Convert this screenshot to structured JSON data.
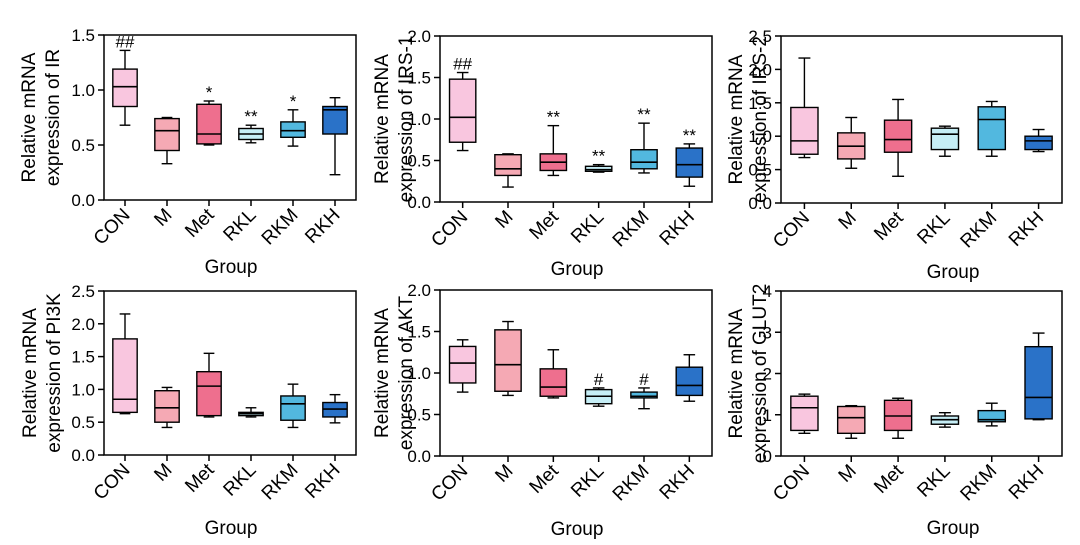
{
  "chart_data": [
    {
      "type": "box",
      "ylabel": [
        "Relative mRNA",
        "expression of IR"
      ],
      "xlabel": "Group",
      "ylim": [
        0,
        1.5
      ],
      "yticks": [
        "0.0",
        "0.5",
        "1.0",
        "1.5"
      ],
      "categories": [
        "CON",
        "M",
        "Met",
        "RKL",
        "RKM",
        "RKH"
      ],
      "boxes": [
        {
          "min": 0.68,
          "q1": 0.85,
          "median": 1.03,
          "q3": 1.19,
          "max": 1.36
        },
        {
          "min": 0.33,
          "q1": 0.45,
          "median": 0.63,
          "q3": 0.74,
          "max": 0.75
        },
        {
          "min": 0.5,
          "q1": 0.51,
          "median": 0.6,
          "q3": 0.87,
          "max": 0.9
        },
        {
          "min": 0.52,
          "q1": 0.55,
          "median": 0.6,
          "q3": 0.65,
          "max": 0.68
        },
        {
          "min": 0.49,
          "q1": 0.57,
          "median": 0.63,
          "q3": 0.71,
          "max": 0.82
        },
        {
          "min": 0.23,
          "q1": 0.6,
          "median": 0.82,
          "q3": 0.85,
          "max": 0.93
        }
      ],
      "marks": [
        "##",
        "",
        "*",
        "**",
        "*",
        ""
      ],
      "colors": [
        "#F9C6DF",
        "#F5A9B4",
        "#EE6F8E",
        "#C6EEF6",
        "#52B8DF",
        "#2A72C8"
      ]
    },
    {
      "type": "box",
      "ylabel": [
        "Relative mRNA",
        "expression of IRS-1"
      ],
      "xlabel": "Group",
      "ylim": [
        0,
        2.0
      ],
      "yticks": [
        "0.0",
        "0.5",
        "1.0",
        "1.5",
        "2.0"
      ],
      "categories": [
        "CON",
        "M",
        "Met",
        "RKL",
        "RKM",
        "RKH"
      ],
      "boxes": [
        {
          "min": 0.62,
          "q1": 0.72,
          "median": 1.02,
          "q3": 1.48,
          "max": 1.56
        },
        {
          "min": 0.18,
          "q1": 0.32,
          "median": 0.4,
          "q3": 0.57,
          "max": 0.58
        },
        {
          "min": 0.32,
          "q1": 0.38,
          "median": 0.48,
          "q3": 0.58,
          "max": 0.92
        },
        {
          "min": 0.36,
          "q1": 0.37,
          "median": 0.39,
          "q3": 0.43,
          "max": 0.45
        },
        {
          "min": 0.35,
          "q1": 0.4,
          "median": 0.48,
          "q3": 0.63,
          "max": 0.95
        },
        {
          "min": 0.19,
          "q1": 0.3,
          "median": 0.45,
          "q3": 0.65,
          "max": 0.7
        }
      ],
      "marks": [
        "##",
        "",
        "**",
        "**",
        "**",
        "**"
      ],
      "colors": [
        "#F9C6DF",
        "#F5A9B4",
        "#EE6F8E",
        "#C6EEF6",
        "#52B8DF",
        "#2A72C8"
      ]
    },
    {
      "type": "box",
      "ylabel": [
        "Relative mRNA",
        "expression of IRS-2"
      ],
      "xlabel": "Group",
      "ylim": [
        0,
        2.5
      ],
      "yticks": [
        "0.0",
        "0.5",
        "1.0",
        "1.5",
        "2.0",
        "2.5"
      ],
      "categories": [
        "CON",
        "M",
        "Met",
        "RKL",
        "RKM",
        "RKH"
      ],
      "boxes": [
        {
          "min": 0.68,
          "q1": 0.73,
          "median": 0.93,
          "q3": 1.43,
          "max": 2.17
        },
        {
          "min": 0.52,
          "q1": 0.66,
          "median": 0.85,
          "q3": 1.05,
          "max": 1.28
        },
        {
          "min": 0.4,
          "q1": 0.76,
          "median": 0.95,
          "q3": 1.24,
          "max": 1.55
        },
        {
          "min": 0.7,
          "q1": 0.8,
          "median": 1.03,
          "q3": 1.12,
          "max": 1.15
        },
        {
          "min": 0.7,
          "q1": 0.8,
          "median": 1.25,
          "q3": 1.44,
          "max": 1.52
        },
        {
          "min": 0.77,
          "q1": 0.8,
          "median": 0.93,
          "q3": 1.0,
          "max": 1.1
        }
      ],
      "marks": [
        "",
        "",
        "",
        "",
        "",
        ""
      ],
      "colors": [
        "#F9C6DF",
        "#F5A9B4",
        "#EE6F8E",
        "#C6EEF6",
        "#52B8DF",
        "#2A72C8"
      ]
    },
    {
      "type": "box",
      "ylabel": [
        "Relative mRNA",
        "expression of PI3K"
      ],
      "xlabel": "Group",
      "ylim": [
        0,
        2.5
      ],
      "yticks": [
        "0.0",
        "0.5",
        "1.0",
        "1.5",
        "2.0",
        "2.5"
      ],
      "categories": [
        "CON",
        "M",
        "Met",
        "RKL",
        "RKM",
        "RKH"
      ],
      "boxes": [
        {
          "min": 0.63,
          "q1": 0.65,
          "median": 0.85,
          "q3": 1.77,
          "max": 2.15
        },
        {
          "min": 0.42,
          "q1": 0.5,
          "median": 0.72,
          "q3": 0.98,
          "max": 1.03
        },
        {
          "min": 0.58,
          "q1": 0.6,
          "median": 1.05,
          "q3": 1.27,
          "max": 1.55
        },
        {
          "min": 0.58,
          "q1": 0.6,
          "median": 0.63,
          "q3": 0.65,
          "max": 0.72
        },
        {
          "min": 0.42,
          "q1": 0.53,
          "median": 0.78,
          "q3": 0.9,
          "max": 1.08
        },
        {
          "min": 0.49,
          "q1": 0.58,
          "median": 0.7,
          "q3": 0.8,
          "max": 0.92
        }
      ],
      "marks": [
        "",
        "",
        "",
        "",
        "",
        ""
      ],
      "colors": [
        "#F9C6DF",
        "#F5A9B4",
        "#EE6F8E",
        "#C6EEF6",
        "#52B8DF",
        "#2A72C8"
      ]
    },
    {
      "type": "box",
      "ylabel": [
        "Relative mRNA",
        "expression of AKT"
      ],
      "xlabel": "Group",
      "ylim": [
        0,
        2.0
      ],
      "yticks": [
        "0.0",
        "0.5",
        "1.0",
        "1.5",
        "2.0"
      ],
      "categories": [
        "CON",
        "M",
        "Met",
        "RKL",
        "RKM",
        "RKH"
      ],
      "boxes": [
        {
          "min": 0.77,
          "q1": 0.88,
          "median": 1.12,
          "q3": 1.32,
          "max": 1.4
        },
        {
          "min": 0.73,
          "q1": 0.78,
          "median": 1.1,
          "q3": 1.52,
          "max": 1.62
        },
        {
          "min": 0.7,
          "q1": 0.72,
          "median": 0.83,
          "q3": 1.05,
          "max": 1.28
        },
        {
          "min": 0.6,
          "q1": 0.63,
          "median": 0.72,
          "q3": 0.8,
          "max": 0.82
        },
        {
          "min": 0.57,
          "q1": 0.7,
          "median": 0.72,
          "q3": 0.77,
          "max": 0.82
        },
        {
          "min": 0.66,
          "q1": 0.73,
          "median": 0.85,
          "q3": 1.07,
          "max": 1.22
        }
      ],
      "marks": [
        "",
        "",
        "",
        "#",
        "#",
        ""
      ],
      "colors": [
        "#F9C6DF",
        "#F5A9B4",
        "#EE6F8E",
        "#C6EEF6",
        "#52B8DF",
        "#2A72C8"
      ]
    },
    {
      "type": "box",
      "ylabel": [
        "Relative mRNA",
        "expression of GLUT2"
      ],
      "xlabel": "Group",
      "ylim": [
        0,
        4
      ],
      "yticks": [
        "0",
        "1",
        "2",
        "3",
        "4"
      ],
      "categories": [
        "CON",
        "M",
        "Met",
        "RKL",
        "RKM",
        "RKH"
      ],
      "boxes": [
        {
          "min": 0.55,
          "q1": 0.62,
          "median": 1.17,
          "q3": 1.45,
          "max": 1.5
        },
        {
          "min": 0.43,
          "q1": 0.55,
          "median": 0.93,
          "q3": 1.2,
          "max": 1.22
        },
        {
          "min": 0.43,
          "q1": 0.62,
          "median": 0.97,
          "q3": 1.35,
          "max": 1.4
        },
        {
          "min": 0.7,
          "q1": 0.77,
          "median": 0.88,
          "q3": 0.97,
          "max": 1.05
        },
        {
          "min": 0.73,
          "q1": 0.83,
          "median": 0.88,
          "q3": 1.1,
          "max": 1.28
        },
        {
          "min": 0.88,
          "q1": 0.9,
          "median": 1.42,
          "q3": 2.65,
          "max": 2.98
        }
      ],
      "marks": [
        "",
        "",
        "",
        "",
        "",
        ""
      ],
      "colors": [
        "#F9C6DF",
        "#F5A9B4",
        "#EE6F8E",
        "#C6EEF6",
        "#52B8DF",
        "#2A72C8"
      ]
    }
  ]
}
